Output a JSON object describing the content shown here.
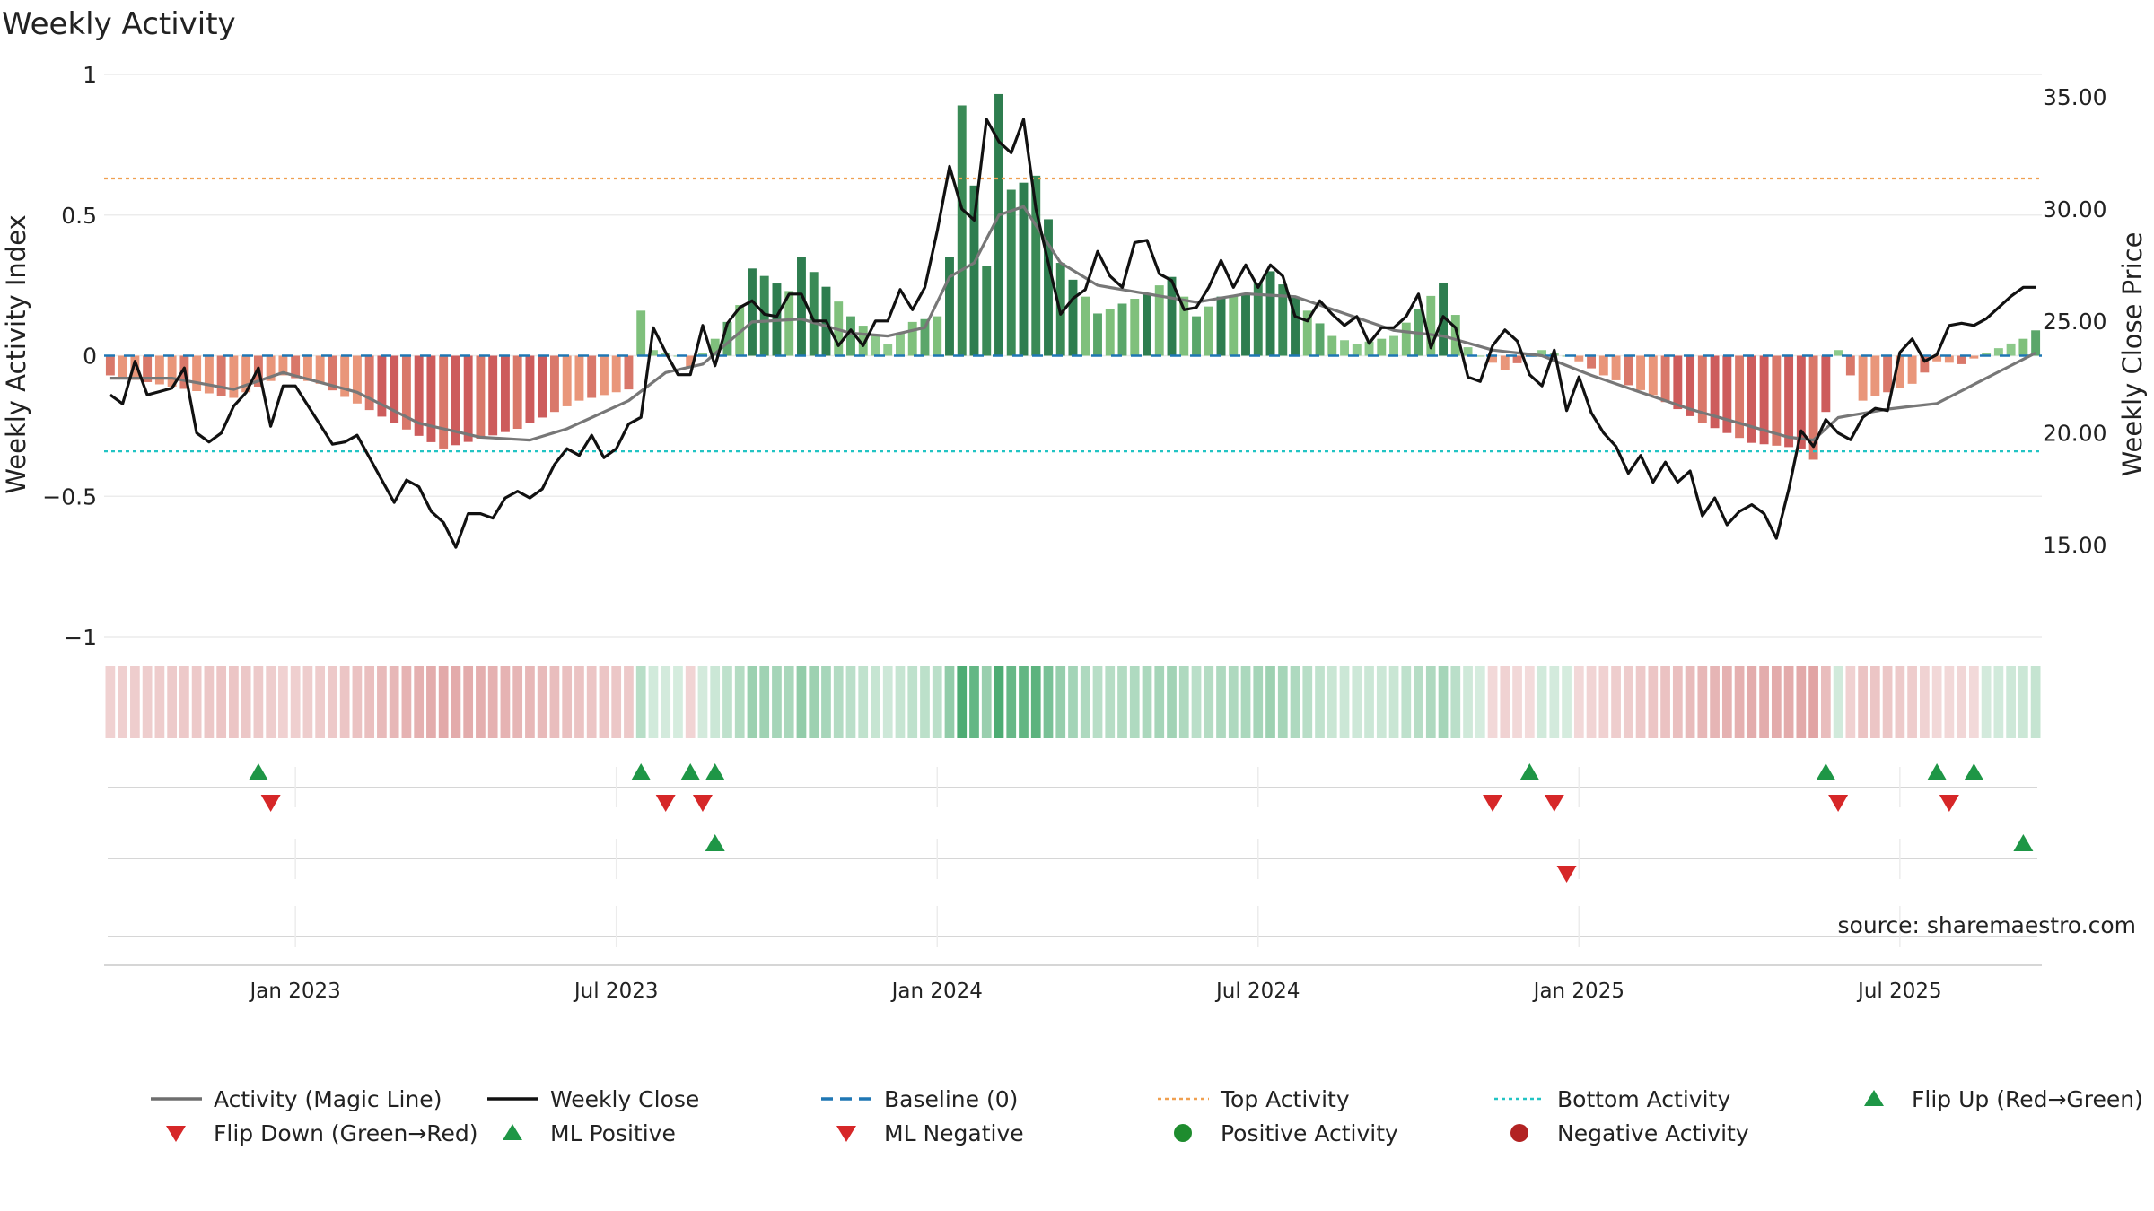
{
  "chart_data": {
    "type": "bar",
    "title": "Weekly Activity",
    "ylabel": "Weekly Activity Index",
    "ylabel_right": "Weekly Close Price",
    "ylim": [
      -1,
      1
    ],
    "ylim_right": [
      10.9,
      36
    ],
    "y_ticks": [
      {
        "v": 1,
        "label": "1"
      },
      {
        "v": 0.5,
        "label": "0.5"
      },
      {
        "v": 0,
        "label": "0"
      },
      {
        "v": -0.5,
        "label": "−0.5"
      },
      {
        "v": -1,
        "label": "−1"
      }
    ],
    "y_right_ticks": [
      {
        "v": 35,
        "label": "35.00"
      },
      {
        "v": 30,
        "label": "30.00"
      },
      {
        "v": 25,
        "label": "25.00"
      },
      {
        "v": 20,
        "label": "20.00"
      },
      {
        "v": 15,
        "label": "15.00"
      }
    ],
    "x_ticks": [
      {
        "week": 15,
        "label": "Jan 2023"
      },
      {
        "week": 41,
        "label": "Jul 2023"
      },
      {
        "week": 67,
        "label": "Jan 2024"
      },
      {
        "week": 93,
        "label": "Jul 2024"
      },
      {
        "week": 119,
        "label": "Jan 2025"
      },
      {
        "week": 145,
        "label": "Jul 2025"
      }
    ],
    "weeks": 157,
    "top_activity": 0.63,
    "bottom_activity": -0.34,
    "activity_anchors": [
      [
        0,
        -0.07
      ],
      [
        10,
        -0.15
      ],
      [
        14,
        -0.07
      ],
      [
        17,
        -0.1
      ],
      [
        23,
        -0.24
      ],
      [
        27,
        -0.33
      ],
      [
        33,
        -0.26
      ],
      [
        38,
        -0.16
      ],
      [
        42,
        -0.12
      ],
      [
        43,
        0.16
      ],
      [
        44,
        0.02
      ],
      [
        46,
        0.0
      ],
      [
        47,
        -0.04
      ],
      [
        49,
        0.06
      ],
      [
        51,
        0.18
      ],
      [
        52,
        0.31
      ],
      [
        55,
        0.23
      ],
      [
        56,
        0.35
      ],
      [
        60,
        0.14
      ],
      [
        63,
        0.04
      ],
      [
        65,
        0.12
      ],
      [
        67,
        0.14
      ],
      [
        68,
        0.35
      ],
      [
        69,
        0.89
      ],
      [
        71,
        0.32
      ],
      [
        72,
        0.93
      ],
      [
        73,
        0.59
      ],
      [
        75,
        0.64
      ],
      [
        77,
        0.33
      ],
      [
        80,
        0.15
      ],
      [
        84,
        0.22
      ],
      [
        86,
        0.28
      ],
      [
        88,
        0.14
      ],
      [
        90,
        0.21
      ],
      [
        92,
        0.22
      ],
      [
        94,
        0.3
      ],
      [
        97,
        0.16
      ],
      [
        99,
        0.07
      ],
      [
        101,
        0.04
      ],
      [
        104,
        0.07
      ],
      [
        108,
        0.26
      ],
      [
        110,
        0.03
      ],
      [
        111,
        0.0
      ],
      [
        113,
        -0.05
      ],
      [
        116,
        0.02
      ],
      [
        118,
        0.0
      ],
      [
        119,
        -0.02
      ],
      [
        121,
        -0.07
      ],
      [
        125,
        -0.14
      ],
      [
        129,
        -0.24
      ],
      [
        133,
        -0.31
      ],
      [
        137,
        -0.33
      ],
      [
        138,
        -0.37
      ],
      [
        139,
        -0.2
      ],
      [
        140,
        0.02
      ],
      [
        142,
        -0.16
      ],
      [
        146,
        -0.1
      ],
      [
        148,
        -0.02
      ],
      [
        150,
        -0.03
      ],
      [
        152,
        0.01
      ],
      [
        155,
        0.06
      ],
      [
        156,
        0.09
      ]
    ],
    "magic_line_anchors": [
      [
        0,
        -0.08
      ],
      [
        5,
        -0.08
      ],
      [
        10,
        -0.12
      ],
      [
        14,
        -0.06
      ],
      [
        20,
        -0.13
      ],
      [
        25,
        -0.24
      ],
      [
        30,
        -0.29
      ],
      [
        34,
        -0.3
      ],
      [
        37,
        -0.26
      ],
      [
        40,
        -0.2
      ],
      [
        42,
        -0.16
      ],
      [
        45,
        -0.06
      ],
      [
        48,
        -0.03
      ],
      [
        52,
        0.12
      ],
      [
        56,
        0.13
      ],
      [
        60,
        0.08
      ],
      [
        63,
        0.07
      ],
      [
        66,
        0.1
      ],
      [
        68,
        0.28
      ],
      [
        70,
        0.33
      ],
      [
        72,
        0.5
      ],
      [
        74,
        0.53
      ],
      [
        77,
        0.33
      ],
      [
        80,
        0.25
      ],
      [
        84,
        0.22
      ],
      [
        88,
        0.19
      ],
      [
        92,
        0.22
      ],
      [
        96,
        0.21
      ],
      [
        100,
        0.15
      ],
      [
        104,
        0.09
      ],
      [
        108,
        0.07
      ],
      [
        112,
        0.02
      ],
      [
        116,
        0.0
      ],
      [
        120,
        -0.07
      ],
      [
        124,
        -0.13
      ],
      [
        128,
        -0.19
      ],
      [
        132,
        -0.24
      ],
      [
        136,
        -0.29
      ],
      [
        138,
        -0.3
      ],
      [
        140,
        -0.22
      ],
      [
        144,
        -0.19
      ],
      [
        148,
        -0.17
      ],
      [
        152,
        -0.08
      ],
      [
        156,
        0.01
      ]
    ],
    "close_anchors": [
      [
        0,
        21.7
      ],
      [
        1,
        21.3
      ],
      [
        2,
        23.2
      ],
      [
        3,
        21.7
      ],
      [
        5,
        22.0
      ],
      [
        6,
        22.9
      ],
      [
        7,
        20.0
      ],
      [
        8,
        19.6
      ],
      [
        9,
        20.0
      ],
      [
        10,
        21.2
      ],
      [
        11,
        21.8
      ],
      [
        12,
        22.9
      ],
      [
        13,
        20.3
      ],
      [
        14,
        22.1
      ],
      [
        15,
        22.1
      ],
      [
        18,
        19.5
      ],
      [
        19,
        19.6
      ],
      [
        20,
        19.9
      ],
      [
        23,
        16.9
      ],
      [
        24,
        17.9
      ],
      [
        25,
        17.6
      ],
      [
        26,
        16.5
      ],
      [
        27,
        16.0
      ],
      [
        28,
        14.9
      ],
      [
        29,
        16.4
      ],
      [
        30,
        16.4
      ],
      [
        31,
        16.2
      ],
      [
        32,
        17.1
      ],
      [
        33,
        17.4
      ],
      [
        34,
        17.1
      ],
      [
        35,
        17.5
      ],
      [
        36,
        18.6
      ],
      [
        37,
        19.3
      ],
      [
        38,
        19.0
      ],
      [
        39,
        19.9
      ],
      [
        40,
        18.9
      ],
      [
        41,
        19.3
      ],
      [
        42,
        20.4
      ],
      [
        43,
        20.7
      ],
      [
        44,
        24.7
      ],
      [
        45,
        23.6
      ],
      [
        46,
        22.6
      ],
      [
        47,
        22.6
      ],
      [
        48,
        24.8
      ],
      [
        49,
        23.0
      ],
      [
        50,
        24.9
      ],
      [
        51,
        25.6
      ],
      [
        52,
        25.9
      ],
      [
        53,
        25.3
      ],
      [
        54,
        25.2
      ],
      [
        55,
        26.2
      ],
      [
        56,
        26.2
      ],
      [
        57,
        25.0
      ],
      [
        58,
        25.0
      ],
      [
        59,
        23.9
      ],
      [
        60,
        24.6
      ],
      [
        61,
        23.9
      ],
      [
        62,
        25.0
      ],
      [
        63,
        25.0
      ],
      [
        64,
        26.4
      ],
      [
        65,
        25.5
      ],
      [
        66,
        26.5
      ],
      [
        67,
        29.0
      ],
      [
        68,
        31.9
      ],
      [
        69,
        30.0
      ],
      [
        70,
        29.5
      ],
      [
        71,
        34.0
      ],
      [
        72,
        33.0
      ],
      [
        73,
        32.5
      ],
      [
        74,
        34.0
      ],
      [
        75,
        30.0
      ],
      [
        76,
        27.6
      ],
      [
        77,
        25.3
      ],
      [
        78,
        26.0
      ],
      [
        79,
        26.4
      ],
      [
        80,
        28.1
      ],
      [
        81,
        27.0
      ],
      [
        82,
        26.5
      ],
      [
        83,
        28.5
      ],
      [
        84,
        28.6
      ],
      [
        85,
        27.1
      ],
      [
        86,
        26.8
      ],
      [
        87,
        25.5
      ],
      [
        88,
        25.6
      ],
      [
        89,
        26.5
      ],
      [
        90,
        27.7
      ],
      [
        91,
        26.5
      ],
      [
        92,
        27.5
      ],
      [
        93,
        26.5
      ],
      [
        94,
        27.5
      ],
      [
        95,
        27.0
      ],
      [
        96,
        25.2
      ],
      [
        97,
        25.0
      ],
      [
        98,
        25.9
      ],
      [
        99,
        25.3
      ],
      [
        100,
        24.8
      ],
      [
        101,
        25.2
      ],
      [
        102,
        24.0
      ],
      [
        103,
        24.7
      ],
      [
        104,
        24.7
      ],
      [
        105,
        25.2
      ],
      [
        106,
        26.2
      ],
      [
        107,
        23.8
      ],
      [
        108,
        25.2
      ],
      [
        109,
        24.7
      ],
      [
        110,
        22.5
      ],
      [
        111,
        22.3
      ],
      [
        112,
        23.9
      ],
      [
        113,
        24.6
      ],
      [
        114,
        24.1
      ],
      [
        115,
        22.6
      ],
      [
        116,
        22.1
      ],
      [
        117,
        23.7
      ],
      [
        118,
        21.0
      ],
      [
        119,
        22.5
      ],
      [
        120,
        20.9
      ],
      [
        121,
        20.0
      ],
      [
        122,
        19.4
      ],
      [
        123,
        18.2
      ],
      [
        124,
        19.0
      ],
      [
        125,
        17.8
      ],
      [
        126,
        18.7
      ],
      [
        127,
        17.8
      ],
      [
        128,
        18.3
      ],
      [
        129,
        16.3
      ],
      [
        130,
        17.1
      ],
      [
        131,
        15.9
      ],
      [
        132,
        16.5
      ],
      [
        133,
        16.8
      ],
      [
        134,
        16.4
      ],
      [
        135,
        15.3
      ],
      [
        136,
        17.5
      ],
      [
        137,
        20.1
      ],
      [
        138,
        19.4
      ],
      [
        139,
        20.6
      ],
      [
        140,
        20.0
      ],
      [
        141,
        19.7
      ],
      [
        142,
        20.7
      ],
      [
        143,
        21.1
      ],
      [
        144,
        21.0
      ],
      [
        145,
        23.6
      ],
      [
        146,
        24.2
      ],
      [
        147,
        23.2
      ],
      [
        148,
        23.5
      ],
      [
        149,
        24.8
      ],
      [
        150,
        24.9
      ],
      [
        151,
        24.8
      ],
      [
        152,
        25.1
      ],
      [
        153,
        25.6
      ],
      [
        154,
        26.1
      ],
      [
        155,
        26.5
      ]
    ],
    "series": [
      {
        "name": "Activity (Magic Line)",
        "color": "#777777"
      },
      {
        "name": "Weekly Close",
        "color": "#111111"
      }
    ],
    "reference_lines": [
      {
        "name": "Baseline (0)",
        "value": 0,
        "color": "#1f77b4"
      },
      {
        "name": "Top Activity",
        "value": 0.63,
        "color": "#f0a050"
      },
      {
        "name": "Bottom Activity",
        "value": -0.34,
        "color": "#22c4c4"
      }
    ],
    "flip_up_weeks": [
      12,
      43,
      47,
      49,
      115,
      139,
      148,
      151
    ],
    "flip_down_weeks": [
      13,
      45,
      48,
      112,
      117,
      140,
      149
    ],
    "ml_positive_weeks": [
      49,
      155
    ],
    "ml_negative_weeks": [
      118
    ],
    "legend": [
      {
        "label": "Activity (Magic Line)",
        "kind": "line",
        "color": "#6e6e6e"
      },
      {
        "label": "Weekly Close",
        "kind": "line",
        "color": "#111111"
      },
      {
        "label": "Baseline (0)",
        "kind": "dashed",
        "color": "#1f77b4"
      },
      {
        "label": "Top Activity",
        "kind": "dotted",
        "color": "#f0a050"
      },
      {
        "label": "Bottom Activity",
        "kind": "dotted",
        "color": "#22c4c4"
      },
      {
        "label": "Flip Up (Red→Green)",
        "kind": "tri-up",
        "color": "#1e9646"
      },
      {
        "label": "Flip Down (Green→Red)",
        "kind": "tri-down",
        "color": "#d62728"
      },
      {
        "label": "ML Positive",
        "kind": "tri-up",
        "color": "#1e9646"
      },
      {
        "label": "ML Negative",
        "kind": "tri-down",
        "color": "#d62728"
      },
      {
        "label": "Positive Activity",
        "kind": "dot",
        "color": "#1e8c2e"
      },
      {
        "label": "Negative Activity",
        "kind": "dot",
        "color": "#b22222"
      }
    ],
    "source": "source: sharemaestro.com"
  }
}
